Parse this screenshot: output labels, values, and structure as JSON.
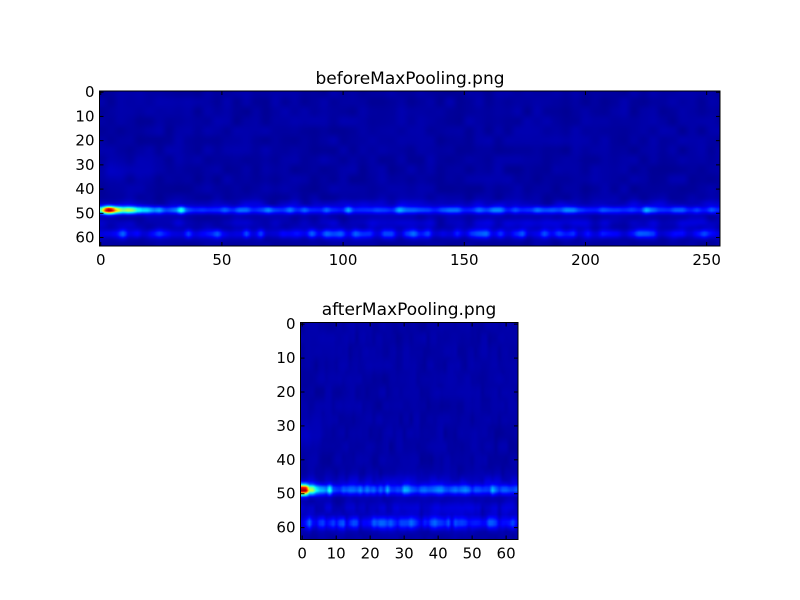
{
  "chart_data": [
    {
      "type": "heatmap",
      "title": "beforeMaxPooling.png",
      "colormap": "jet",
      "shape": [
        64,
        256
      ],
      "xlim": [
        -0.5,
        255.5
      ],
      "ylim": [
        63.5,
        -0.5
      ],
      "xticks": [
        0,
        50,
        100,
        150,
        200,
        250
      ],
      "yticks": [
        0,
        10,
        20,
        30,
        40,
        50,
        60
      ],
      "grid": false,
      "features": "bright band near row 49 strongest at columns 0-10 (red peak near column 3), weaker band near row 58"
    },
    {
      "type": "heatmap",
      "title": "afterMaxPooling.png",
      "colormap": "jet",
      "shape": [
        64,
        64
      ],
      "xlim": [
        -0.5,
        63.5
      ],
      "ylim": [
        63.5,
        -0.5
      ],
      "xticks": [
        0,
        10,
        20,
        30,
        40,
        50,
        60
      ],
      "yticks": [
        0,
        10,
        20,
        30,
        40,
        50,
        60
      ],
      "grid": false,
      "features": "bright band near row 49 strongest at columns 0-2 (red peak near column 1), weaker band near row 58"
    }
  ]
}
